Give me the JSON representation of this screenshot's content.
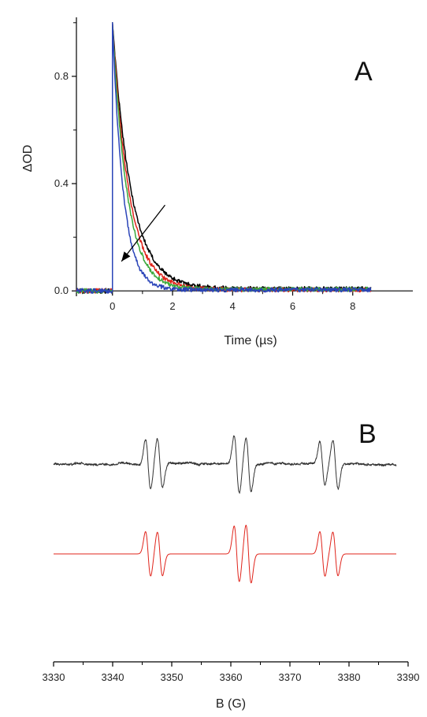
{
  "chart_data": [
    {
      "panel": "A",
      "type": "line",
      "xlabel": "Time (µs)",
      "ylabel": "ΔOD",
      "xlim": [
        -1.2,
        10
      ],
      "ylim": [
        -0.02,
        1.02
      ],
      "xticks": [
        0,
        2,
        4,
        6,
        8
      ],
      "xtick_labels": [
        "0",
        "2",
        "4",
        "6",
        "8"
      ],
      "yticks": [
        0.0,
        0.4,
        0.8
      ],
      "ytick_labels": [
        "0.0",
        "0.4",
        "0.8"
      ],
      "t_start": -1.2,
      "t_end": 8.6,
      "grid": false,
      "series": [
        {
          "color": "#000000",
          "amplitude": 1.0,
          "tau": 0.62,
          "offset": 0.008
        },
        {
          "color": "#e0241b",
          "amplitude": 1.0,
          "tau": 0.55,
          "offset": 0.004
        },
        {
          "color": "#3aa83a",
          "amplitude": 1.0,
          "tau": 0.48,
          "offset": 0.006
        },
        {
          "color": "#2a44b8",
          "amplitude": 1.0,
          "tau": 0.36,
          "offset": 0.004
        }
      ],
      "annotation": {
        "type": "arrow",
        "from": [
          1.75,
          0.32
        ],
        "to": [
          0.3,
          0.11
        ],
        "color": "#000000"
      }
    },
    {
      "panel": "B",
      "type": "line",
      "xlabel": "B (G)",
      "xlim": [
        3330,
        3390
      ],
      "xticks": [
        3330,
        3340,
        3350,
        3360,
        3370,
        3380,
        3390
      ],
      "xtick_labels": [
        "3330",
        "3340",
        "3350",
        "3360",
        "3370",
        "3380",
        "3390"
      ],
      "field_start": 3330,
      "field_end": 3388,
      "width": 0.62,
      "grid": false,
      "series": [
        {
          "color": "#333333",
          "kind": "experimental",
          "lines": [
            {
              "center": 3346.0,
              "amplitude": 1.0
            },
            {
              "center": 3348.0,
              "amplitude": 1.0
            },
            {
              "center": 3361.0,
              "amplitude": 1.15
            },
            {
              "center": 3363.0,
              "amplitude": 1.1
            },
            {
              "center": 3375.5,
              "amplitude": 0.85
            },
            {
              "center": 3377.7,
              "amplitude": 1.0
            }
          ]
        },
        {
          "color": "#e0241b",
          "kind": "simulated",
          "lines": [
            {
              "center": 3346.0,
              "amplitude": 1.0
            },
            {
              "center": 3348.0,
              "amplitude": 0.98
            },
            {
              "center": 3361.0,
              "amplitude": 1.25
            },
            {
              "center": 3363.0,
              "amplitude": 1.3
            },
            {
              "center": 3375.5,
              "amplitude": 1.0
            },
            {
              "center": 3377.7,
              "amplitude": 0.98
            }
          ]
        }
      ]
    }
  ]
}
